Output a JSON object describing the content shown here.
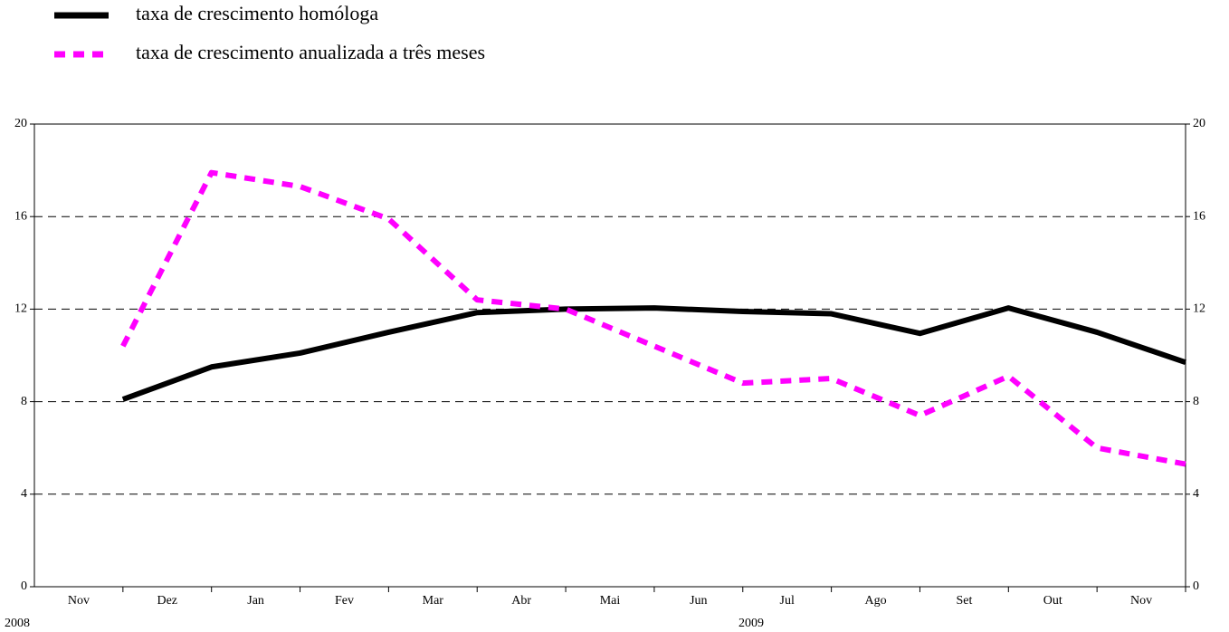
{
  "chart_data": {
    "type": "line",
    "categories": [
      "Nov",
      "Dez",
      "Jan",
      "Fev",
      "Mar",
      "Abr",
      "Mai",
      "Jun",
      "Jul",
      "Ago",
      "Set",
      "Out",
      "Nov"
    ],
    "years": [
      "2008",
      "2009"
    ],
    "series": [
      {
        "name": "taxa de crescimento homóloga",
        "color": "#000000",
        "style": "solid",
        "values": [
          8.1,
          9.5,
          10.1,
          11.0,
          11.85,
          12.0,
          12.05,
          11.9,
          11.8,
          10.95,
          12.05,
          11.0,
          9.7
        ]
      },
      {
        "name": "taxa de crescimento anualizada a três meses",
        "color": "#ff00ff",
        "style": "dashed",
        "values": [
          10.4,
          17.9,
          17.3,
          15.9,
          12.4,
          12.0,
          10.4,
          8.8,
          9.0,
          7.4,
          9.1,
          6.0,
          5.3
        ]
      }
    ],
    "ylim": [
      0,
      20
    ],
    "yticks": [
      0,
      4,
      8,
      12,
      16,
      20
    ],
    "y2lim": [
      0,
      20
    ],
    "y2ticks": [
      0,
      4,
      8,
      12,
      16,
      20
    ],
    "grid": true,
    "legend": "top-left"
  }
}
